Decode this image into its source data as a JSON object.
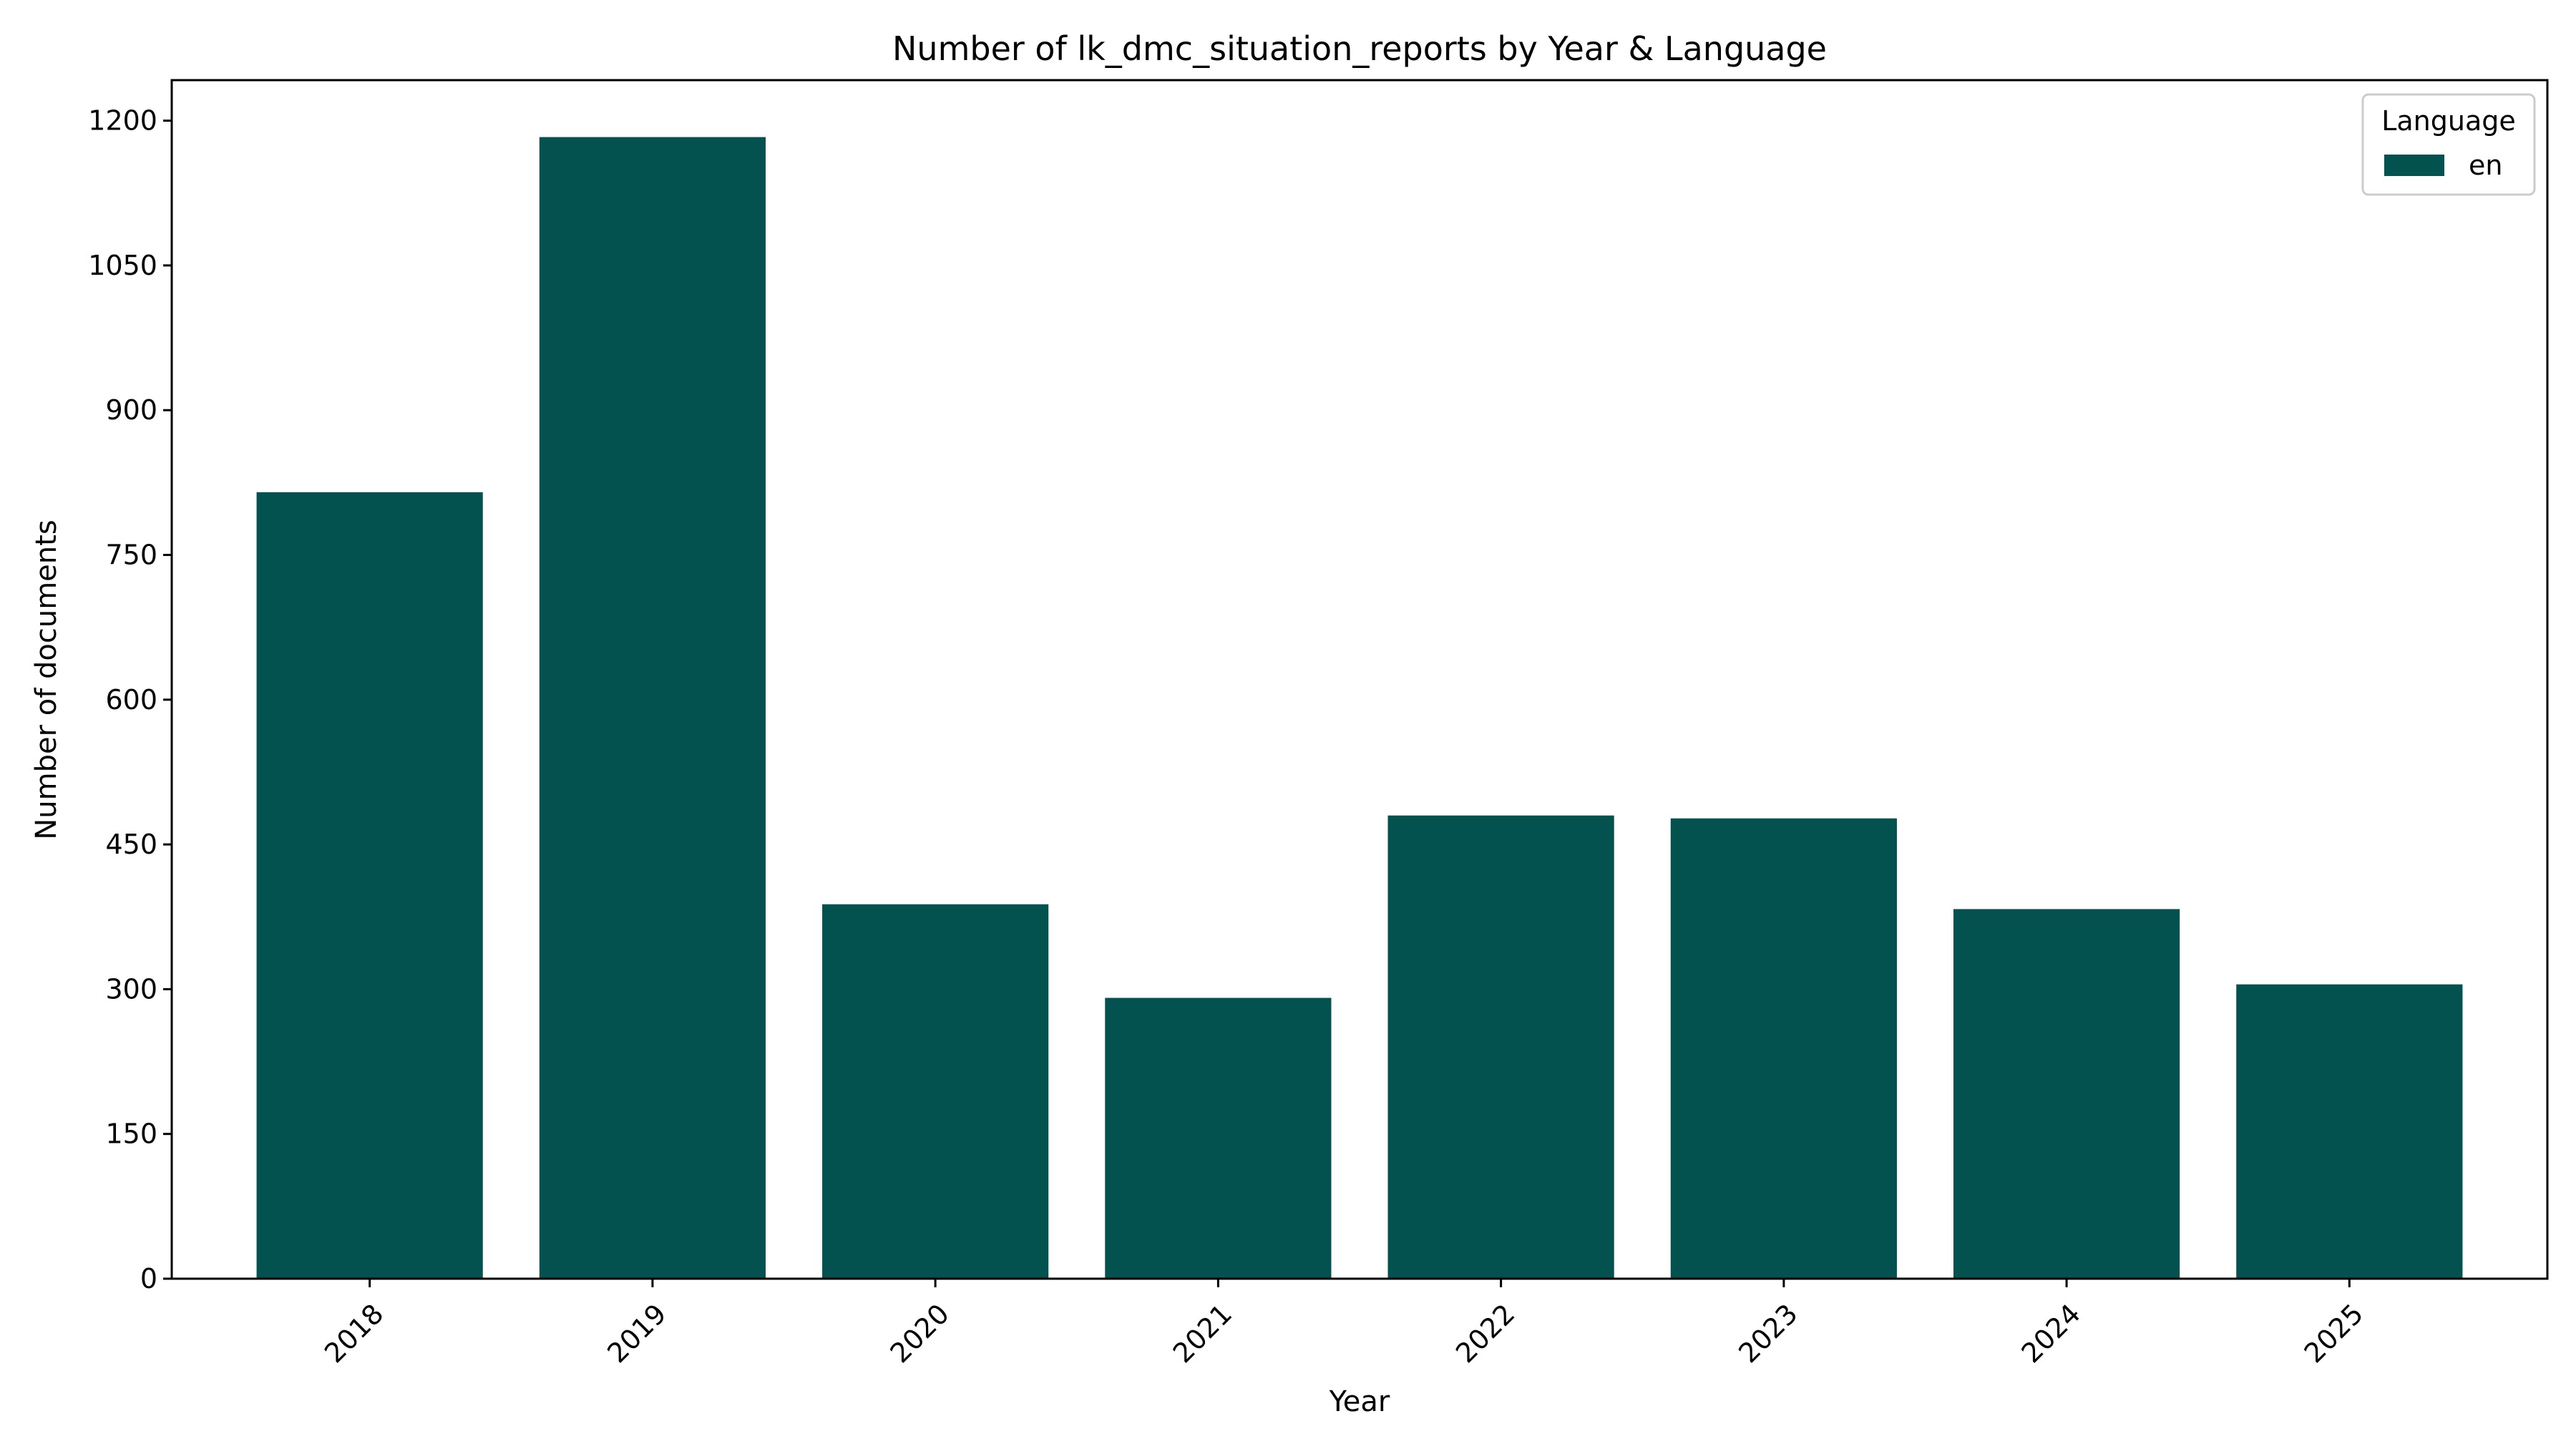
{
  "chart_data": {
    "type": "bar",
    "title": "Number of lk_dmc_situation_reports by Year & Language",
    "xlabel": "Year",
    "ylabel": "Number of documents",
    "categories": [
      "2018",
      "2019",
      "2020",
      "2021",
      "2022",
      "2023",
      "2024",
      "2025"
    ],
    "series": [
      {
        "name": "en",
        "values": [
          815,
          1183,
          388,
          291,
          480,
          477,
          383,
          305
        ],
        "color": "#03524f"
      }
    ],
    "ylim": [
      0,
      1242
    ],
    "yticks": [
      0,
      150,
      300,
      450,
      600,
      750,
      900,
      1050,
      1200
    ],
    "grid": false,
    "legend": {
      "title": "Language",
      "placement": "top-right"
    }
  }
}
